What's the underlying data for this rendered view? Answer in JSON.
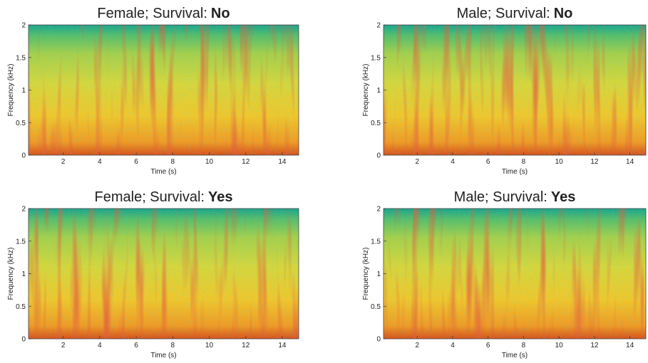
{
  "chart_data": [
    {
      "type": "spectrogram",
      "title": {
        "text": "Female; Survival:",
        "bold": "No"
      },
      "xlabel": "Time (s)",
      "ylabel": "Frequency (kHz)",
      "xlim": [
        0.1,
        14.9
      ],
      "ylim": [
        0,
        2
      ],
      "xticks": [
        2,
        4,
        6,
        8,
        10,
        12,
        14
      ],
      "yticks": [
        0,
        0.5,
        1,
        1.5,
        2
      ]
    },
    {
      "type": "spectrogram",
      "title": {
        "text": "Male; Survival:",
        "bold": "No"
      },
      "xlabel": "Time (s)",
      "ylabel": "Frequency (kHz)",
      "xlim": [
        0.1,
        14.9
      ],
      "ylim": [
        0,
        2
      ],
      "xticks": [
        2,
        4,
        6,
        8,
        10,
        12,
        14
      ],
      "yticks": [
        0,
        0.5,
        1,
        1.5,
        2
      ]
    },
    {
      "type": "spectrogram",
      "title": {
        "text": "Female; Survival:",
        "bold": "Yes"
      },
      "xlabel": "Time (s)",
      "ylabel": "Frequency (kHz)",
      "xlim": [
        0.1,
        14.9
      ],
      "ylim": [
        0,
        2
      ],
      "xticks": [
        2,
        4,
        6,
        8,
        10,
        12,
        14
      ],
      "yticks": [
        0,
        0.5,
        1,
        1.5,
        2
      ]
    },
    {
      "type": "spectrogram",
      "title": {
        "text": "Male; Survival:",
        "bold": "Yes"
      },
      "xlabel": "Time (s)",
      "ylabel": "Frequency (kHz)",
      "xlim": [
        0.1,
        14.9
      ],
      "ylim": [
        0,
        2
      ],
      "xticks": [
        2,
        4,
        6,
        8,
        10,
        12,
        14
      ],
      "yticks": [
        0,
        0.5,
        1,
        1.5,
        2
      ]
    }
  ]
}
